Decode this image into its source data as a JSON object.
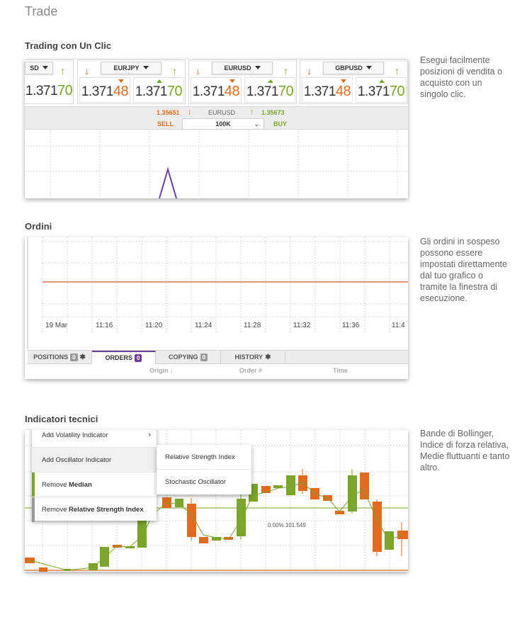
{
  "page": {
    "title": "Trade"
  },
  "trading": {
    "title": "Trading con Un Clic",
    "description": "Esegui facilmente posizioni di vendita o acquisto con un singolo clic.",
    "tickets": [
      {
        "pair": "SD",
        "sell": {
          "main": "1.371",
          "big": "70"
        },
        "buy": null,
        "sell_arrow": "↑",
        "buy_arrow": ""
      },
      {
        "pair": "EURJPY",
        "sell": {
          "main": "1.371",
          "big": "48"
        },
        "buy": {
          "main": "1.371",
          "big": "70"
        },
        "sell_arrow": "↓",
        "buy_arrow": "↑"
      },
      {
        "pair": "EURUSD",
        "sell": {
          "main": "1.371",
          "big": "48"
        },
        "buy": {
          "main": "1.371",
          "big": "70"
        },
        "sell_arrow": "↓",
        "buy_arrow": "↑"
      },
      {
        "pair": "GBPUSD",
        "sell": {
          "main": "1.371",
          "big": "48"
        },
        "buy": {
          "main": "1.371",
          "big": "70"
        },
        "sell_arrow": "↓",
        "buy_arrow": "↑"
      }
    ],
    "deal": {
      "sell_price": "1.35651",
      "sell_arrow": "↓",
      "pair": "EURUSD",
      "buy_arrow": "↑",
      "buy_price": "1.35673",
      "sell_label": "SELL",
      "amount": "100K",
      "amount_chevron": "⌄",
      "buy_label": "BUY"
    },
    "colors": {
      "up": "#7aa52a",
      "down": "#e06b1f",
      "accent": "#6b3fa0"
    }
  },
  "orders": {
    "title": "Ordini",
    "description": "Gli ordini in sospeso possono essere impostati direttamente dal tuo grafico o tramite la finestra di esecuzione.",
    "time_labels": [
      "19 Mar",
      "11:16",
      "11:20",
      "11:24",
      "11:28",
      "11:32",
      "11:36",
      "11:4"
    ],
    "tabs": [
      {
        "label": "POSITIONS",
        "count": "0",
        "gear": "✱"
      },
      {
        "label": "ORDERS",
        "count": "0",
        "gear": ""
      },
      {
        "label": "COPYING",
        "count": "0",
        "gear": ""
      },
      {
        "label": "HISTORY",
        "count": "",
        "gear": "✱"
      }
    ],
    "columns": [
      "Origin ↓",
      "Order #",
      "Time"
    ]
  },
  "indicators": {
    "title": "Indicatori tecnici",
    "description": "Bande di Bollinger, Indice di forza relativa, Medie fluttuanti e tanto altro.",
    "menu": [
      {
        "label": "Add Volatility Indicator",
        "bold": "",
        "arrow": "›"
      },
      {
        "label": "Add Oscillator Indicator",
        "bold": "",
        "arrow": ""
      },
      {
        "label": "Remove ",
        "bold": "Median",
        "arrow": ""
      },
      {
        "label": "Remove ",
        "bold": "Relative Strength Index",
        "arrow": ""
      }
    ],
    "submenu": [
      "Relative Strength Index",
      "Stochastic Oscillator"
    ],
    "readout": "0.00% 101.549"
  }
}
